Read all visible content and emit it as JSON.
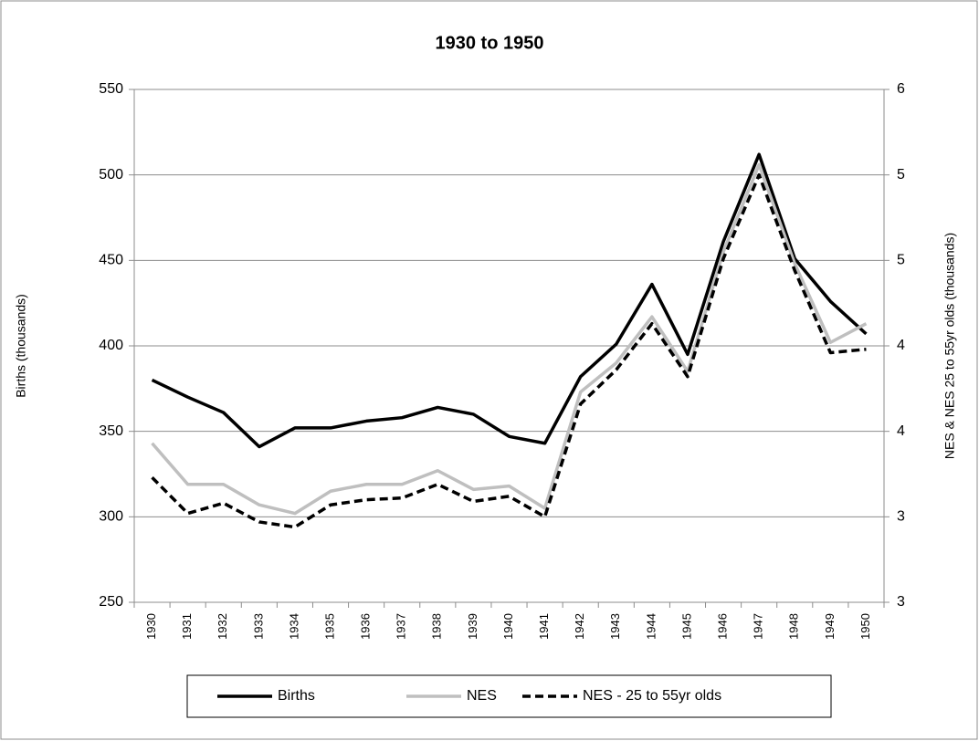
{
  "chart_data": {
    "type": "line",
    "title": "1930 to 1950",
    "y_label": "Births (thousands)",
    "y2_label": "NES & NES 25 to 55yr olds (thousands)",
    "categories": [
      "1930",
      "1931",
      "1932",
      "1933",
      "1934",
      "1935",
      "1936",
      "1937",
      "1938",
      "1939",
      "1940",
      "1941",
      "1942",
      "1943",
      "1944",
      "1945",
      "1946",
      "1947",
      "1948",
      "1949",
      "1950"
    ],
    "series": [
      {
        "name": "Births",
        "color": "#000000",
        "style": "solid",
        "axis": "y",
        "values": [
          380,
          370,
          361,
          341,
          352,
          352,
          356,
          358,
          364,
          360,
          347,
          343,
          382,
          401,
          436,
          395,
          461,
          512,
          451,
          426,
          407
        ]
      },
      {
        "name": "NES",
        "color": "#bfbfbf",
        "style": "solid",
        "axis": "y2",
        "values": [
          3.43,
          3.19,
          3.19,
          3.07,
          3.02,
          3.15,
          3.19,
          3.19,
          3.27,
          3.16,
          3.18,
          3.05,
          3.73,
          3.9,
          4.17,
          3.85,
          4.55,
          5.06,
          4.48,
          4.02,
          4.13
        ]
      },
      {
        "name": "NES - 25 to 55yr olds",
        "color": "#000000",
        "style": "dashed",
        "axis": "y2",
        "values": [
          3.23,
          3.02,
          3.08,
          2.97,
          2.94,
          3.07,
          3.1,
          3.11,
          3.19,
          3.09,
          3.12,
          3.0,
          3.66,
          3.86,
          4.13,
          3.82,
          4.51,
          5.0,
          4.44,
          3.96,
          3.98
        ]
      }
    ],
    "ylim": [
      250,
      550
    ],
    "yticks": [
      250,
      300,
      350,
      400,
      450,
      500,
      550
    ],
    "y2lim": [
      2.5,
      5.5
    ],
    "y2ticks": [
      {
        "value": 2.5,
        "label": "3"
      },
      {
        "value": 3,
        "label": "3"
      },
      {
        "value": 3.5,
        "label": "4"
      },
      {
        "value": 4,
        "label": "4"
      },
      {
        "value": 4.5,
        "label": "5"
      },
      {
        "value": 5,
        "label": "5"
      },
      {
        "value": 5.5,
        "label": "6"
      }
    ],
    "grid": true,
    "legend": "bottom"
  }
}
